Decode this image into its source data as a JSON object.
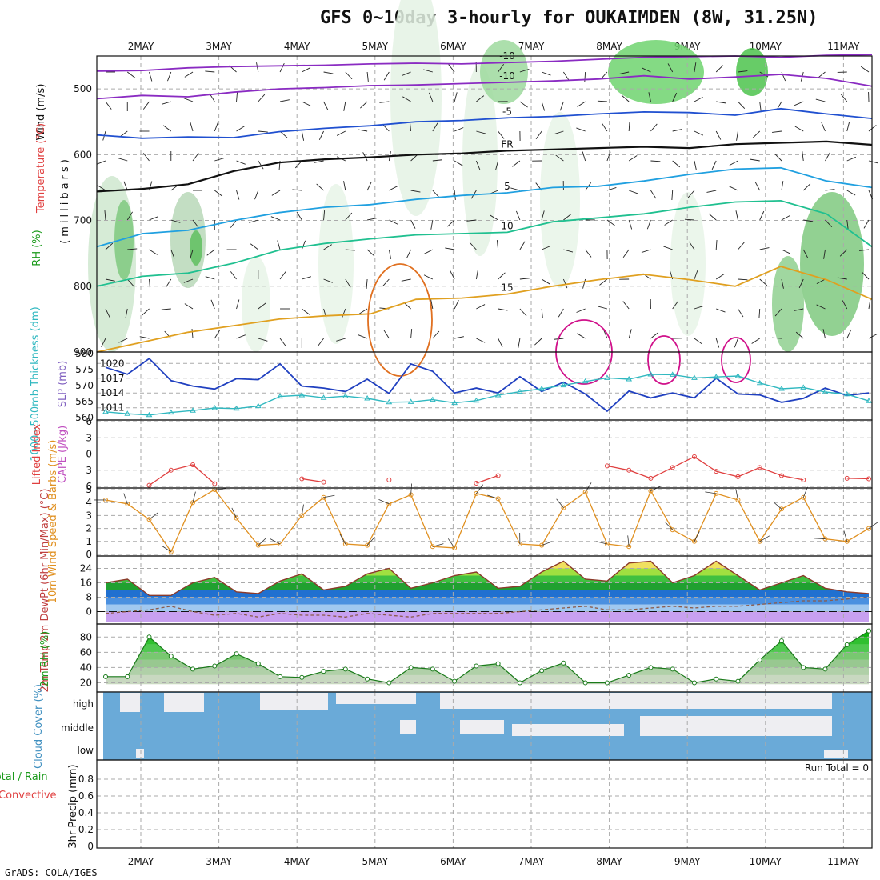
{
  "header": {
    "title": "GFS 0~10day 3-hourly for OUKAIMDEN (8W, 31.25N)",
    "credit": "GrADS: COLA/IGES"
  },
  "colors": {
    "purple": "#8a2bc2",
    "blue": "#2050d0",
    "lightblue": "#20a0e0",
    "teal": "#20c090",
    "orange": "#e0a020",
    "dkorange": "#e07020",
    "magenta": "#d0108a",
    "cyan": "#30b8c0",
    "slp": "#2040c0",
    "rhgreen": "#30c030",
    "cloud": "#6aaad8",
    "lifted": "#e04040",
    "wind": "#e09020"
  },
  "chart_data": [
    {
      "id": "upper-air",
      "type": "contour",
      "title": "Wind / Temperature / RH",
      "xlabels": [
        "2MAY",
        "3MAY",
        "4MAY",
        "5MAY",
        "6MAY",
        "7MAY",
        "8MAY",
        "9MAY",
        "10MAY",
        "11MAY"
      ],
      "ylabel": "(millibars)",
      "ylim": [
        900,
        450
      ],
      "yticks": [
        500,
        600,
        700,
        800,
        900
      ],
      "side_labels": {
        "wind": "Wind (m/s)",
        "temp": "Temperature (°C)",
        "rh": "RH (%)"
      },
      "isotherms": [
        {
          "label": "-10",
          "pressures": [
            473,
            472,
            468,
            466,
            465,
            464,
            462,
            461,
            462,
            460,
            458,
            455,
            452,
            451,
            450,
            452,
            449,
            448
          ]
        },
        {
          "label": "-10",
          "pressures": [
            515,
            510,
            512,
            505,
            500,
            498,
            495,
            494,
            492,
            490,
            488,
            485,
            480,
            485,
            482,
            478,
            484,
            496
          ]
        },
        {
          "label": "-5",
          "pressures": [
            570,
            575,
            573,
            574,
            565,
            560,
            556,
            550,
            548,
            544,
            542,
            538,
            535,
            536,
            540,
            530,
            538,
            545
          ]
        },
        {
          "label": "FR",
          "pressures": [
            656,
            652,
            645,
            625,
            612,
            607,
            604,
            600,
            598,
            594,
            592,
            590,
            588,
            590,
            584,
            582,
            580,
            585
          ]
        },
        {
          "label": "5",
          "pressures": [
            740,
            720,
            715,
            700,
            688,
            680,
            676,
            668,
            662,
            658,
            650,
            648,
            640,
            630,
            622,
            620,
            640,
            650
          ]
        },
        {
          "label": "10",
          "pressures": [
            800,
            785,
            780,
            765,
            745,
            735,
            728,
            722,
            720,
            718,
            702,
            696,
            690,
            680,
            672,
            670,
            690,
            740
          ]
        },
        {
          "label": "15",
          "pressures": [
            900,
            885,
            870,
            860,
            850,
            845,
            842,
            820,
            818,
            812,
            800,
            790,
            782,
            790,
            800,
            770,
            790,
            820
          ]
        }
      ]
    },
    {
      "id": "slp-thickness",
      "type": "line",
      "ylabel_left": "1000~500mb Thickness (dm)",
      "ylabel_right": "SLP (mb)",
      "left_ticks": [
        560,
        565,
        570,
        575,
        580
      ],
      "right_ticks": [
        1011,
        1014,
        1017,
        1020
      ],
      "series": [
        {
          "name": "SLP (mb)",
          "values": [
            1019.2,
            1017.8,
            1021.0,
            1016.5,
            1015.4,
            1014.8,
            1016.9,
            1016.7,
            1019.9,
            1015.4,
            1015.0,
            1014.3,
            1016.8,
            1013.9,
            1019.9,
            1018.4,
            1014.0,
            1015.0,
            1014.0,
            1017.3,
            1014.3,
            1016.2,
            1013.8,
            1010.3,
            1014.4,
            1013.0,
            1014.0,
            1013.0,
            1017.0,
            1013.8,
            1013.6,
            1012.1,
            1012.9,
            1015.0,
            1013.5,
            1014.0
          ]
        },
        {
          "name": "Thickness (dm)",
          "values": [
            561.8,
            561.2,
            560.8,
            561.6,
            562.2,
            563.0,
            562.8,
            563.6,
            566.6,
            567.0,
            566.2,
            566.7,
            566.0,
            564.8,
            564.9,
            565.6,
            564.6,
            565.3,
            567.0,
            568.1,
            569.0,
            570.1,
            571.3,
            572.4,
            572.0,
            573.5,
            573.4,
            572.4,
            572.7,
            573.0,
            570.8,
            569.0,
            569.4,
            568.0,
            567.3,
            565.2
          ]
        }
      ]
    },
    {
      "id": "cape-li",
      "type": "line",
      "ylabel_left": "Lifted Index",
      "ylabel_right": "CAPE (J/kg)",
      "yticks": [
        -6,
        -3,
        0,
        3,
        6
      ],
      "series": [
        {
          "name": "Lifted Index",
          "values": [
            null,
            null,
            5.8,
            3.0,
            2.0,
            5.5,
            null,
            null,
            null,
            4.6,
            5.2,
            null,
            null,
            4.8,
            null,
            null,
            null,
            5.4,
            4.0,
            null,
            null,
            null,
            null,
            2.2,
            3.0,
            4.5,
            2.5,
            0.5,
            3.2,
            4.2,
            2.5,
            4.0,
            4.8,
            null,
            4.5,
            4.6
          ]
        }
      ]
    },
    {
      "id": "wind10m",
      "type": "line",
      "ylabel": "10m Wind Speed & Barbs (m/s)",
      "ylim": [
        0,
        5
      ],
      "yticks": [
        0,
        1,
        2,
        3,
        4,
        5
      ],
      "series": [
        {
          "name": "Speed",
          "values": [
            4.2,
            3.9,
            2.7,
            0.2,
            4.0,
            5.0,
            2.8,
            0.7,
            0.8,
            3.0,
            4.4,
            0.8,
            0.7,
            3.9,
            4.6,
            0.6,
            0.5,
            4.7,
            4.3,
            0.8,
            0.7,
            3.6,
            4.8,
            0.8,
            0.6,
            4.9,
            1.9,
            1.0,
            4.7,
            4.2,
            1.0,
            3.5,
            4.4,
            1.2,
            1.0,
            2.0
          ]
        }
      ]
    },
    {
      "id": "temp2m",
      "type": "area",
      "ylabel": "2m Temp 2m DewPt (6hr Min/Max) (°C)",
      "yticks": [
        0,
        8,
        16,
        24
      ],
      "series": [
        {
          "name": "2m Temp (°C)",
          "values": [
            16,
            18,
            9,
            9,
            16,
            19,
            11,
            10,
            17,
            21,
            12,
            14,
            21,
            24,
            13,
            16,
            20,
            22,
            13,
            14,
            22,
            28,
            18,
            17,
            27,
            28,
            16,
            20,
            28,
            20,
            12,
            16,
            20,
            13,
            11,
            10
          ]
        },
        {
          "name": "2m DewPt (°C)",
          "values": [
            -1,
            0,
            1,
            3,
            0,
            -2,
            -1,
            -3,
            -1,
            -2,
            -2,
            -3,
            -1,
            -2,
            -3,
            -1,
            -1,
            -1,
            -1,
            0,
            1,
            2,
            3,
            1,
            1,
            2,
            3,
            2,
            3,
            3,
            4,
            5,
            6,
            6,
            7,
            8
          ]
        }
      ]
    },
    {
      "id": "rh2m",
      "type": "area",
      "ylabel": "2m RH (%)",
      "yticks": [
        20,
        40,
        60,
        80
      ],
      "series": [
        {
          "name": "2m RH (%)",
          "values": [
            28,
            28,
            80,
            55,
            38,
            42,
            58,
            45,
            28,
            27,
            35,
            38,
            25,
            20,
            40,
            38,
            22,
            42,
            45,
            20,
            36,
            46,
            20,
            20,
            30,
            40,
            38,
            20,
            25,
            22,
            50,
            75,
            40,
            38,
            70,
            88
          ]
        }
      ]
    },
    {
      "id": "cloud",
      "type": "heatmap",
      "ylabel": "Cloud Cover (%)",
      "rows": [
        "high",
        "middle",
        "low"
      ],
      "note": "Cloud cover largely 100% (blue), with clear breaks at high level across 3MAY and 5MAY-10MAY; partial middle-level breaks 6MAY-10MAY."
    },
    {
      "id": "precip",
      "type": "bar",
      "ylabel": "3hr Precip (mm)",
      "legend": [
        "Total / Rain",
        "Convective"
      ],
      "ylim": [
        0,
        1
      ],
      "yticks": [
        "0",
        "0.2",
        "0.4",
        "0.6",
        "0.8"
      ],
      "run_total": "Run Total = 0",
      "values": []
    }
  ]
}
